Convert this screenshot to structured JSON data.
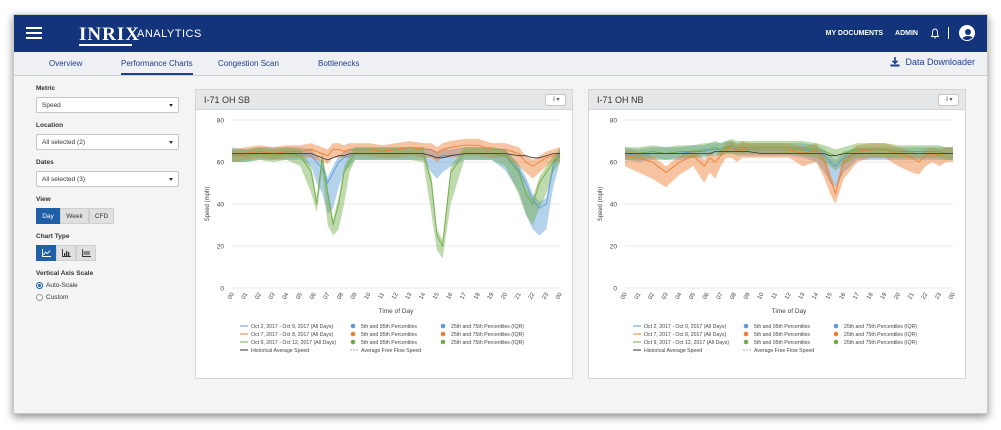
{
  "header": {
    "logo": "INRIX",
    "app_name": "ANALYTICS",
    "links": [
      "MY DOCUMENTS",
      "ADMIN"
    ],
    "icons": [
      "menu-icon",
      "bell-icon",
      "avatar-icon"
    ]
  },
  "tabs": [
    {
      "label": "Overview",
      "active": false
    },
    {
      "label": "Performance Charts",
      "active": true
    },
    {
      "label": "Congestion Scan",
      "active": false
    },
    {
      "label": "Bottlenecks",
      "active": false
    }
  ],
  "downloader_label": "Data Downloader",
  "sidebar": {
    "metric_label": "Metric",
    "metric_value": "Speed",
    "location_label": "Location",
    "location_value": "All selected (2)",
    "dates_label": "Dates",
    "dates_value": "All selected (3)",
    "view_label": "View",
    "view_options": [
      {
        "label": "Day",
        "active": true
      },
      {
        "label": "Week",
        "active": false
      },
      {
        "label": "CFD",
        "active": false
      }
    ],
    "chart_type_label": "Chart Type",
    "chart_type_icons": [
      "line-chart-icon",
      "bar-chart-icon",
      "area-chart-icon"
    ],
    "vertical_axis_label": "Vertical Axis Scale",
    "axis_options": [
      {
        "label": "Auto-Scale",
        "selected": true
      },
      {
        "label": "Custom",
        "selected": false
      }
    ]
  },
  "colors": {
    "brand": "#13347a",
    "accent": "#1f5fa8",
    "series_blue": "#5b9bd5",
    "series_orange": "#ed7d31",
    "series_green": "#70ad47",
    "historical": "#333333"
  },
  "chart_data": [
    {
      "type": "area",
      "title": "I-71 OH SB",
      "xlabel": "Time of Day",
      "ylabel": "Speed (mph)",
      "ylim": [
        0,
        80
      ],
      "yticks": [
        0,
        20,
        40,
        60,
        80
      ],
      "x_ticks": [
        "00",
        "01",
        "02",
        "03",
        "04",
        "05",
        "06",
        "07",
        "08",
        "09",
        "10",
        "11",
        "12",
        "13",
        "14",
        "15",
        "16",
        "17",
        "18",
        "19",
        "20",
        "21",
        "22",
        "23",
        "00"
      ],
      "grid": true,
      "legend": [
        {
          "name": "Oct 2, 2017 - Oct 9, 2017 (All Days)",
          "color": "#5b9bd5",
          "kind": "line"
        },
        {
          "name": "5th and 95th Percentiles",
          "color": "#5b9bd5",
          "kind": "dot"
        },
        {
          "name": "25th and 75th Percentiles (IQR)",
          "color": "#5b9bd5",
          "kind": "dot"
        },
        {
          "name": "Oct 7, 2017 - Oct 8, 2017 (All Days)",
          "color": "#ed7d31",
          "kind": "line"
        },
        {
          "name": "5th and 95th Percentiles",
          "color": "#ed7d31",
          "kind": "dot"
        },
        {
          "name": "25th and 75th Percentiles (IQR)",
          "color": "#ed7d31",
          "kind": "dot"
        },
        {
          "name": "Oct 9, 2017 - Oct 12, 2017 (All Days)",
          "color": "#70ad47",
          "kind": "line"
        },
        {
          "name": "5th and 95th Percentiles",
          "color": "#70ad47",
          "kind": "dot"
        },
        {
          "name": "25th and 75th Percentiles (IQR)",
          "color": "#70ad47",
          "kind": "dot"
        },
        {
          "name": "Historical Average Speed",
          "color": "#333333",
          "kind": "line"
        },
        {
          "name": "Average Free Flow Speed",
          "color": "#aaaaaa",
          "kind": "dash"
        }
      ],
      "x_hours": [
        0,
        1,
        2,
        3,
        4,
        5,
        5.8,
        6.2,
        6.6,
        7,
        7.4,
        7.8,
        8.2,
        8.6,
        9,
        10,
        11,
        12,
        13,
        14,
        14.6,
        15,
        15.4,
        16,
        17,
        18,
        19,
        20,
        21,
        21.5,
        22,
        22.5,
        23,
        23.5,
        24
      ],
      "series": [
        {
          "name": "Oct 2, 2017 - Oct 9, 2017 (All Days)",
          "color": "#5b9bd5",
          "values": [
            64,
            63,
            64,
            64,
            64,
            64,
            63,
            60,
            57,
            50,
            55,
            60,
            62,
            63,
            64,
            64,
            64,
            64,
            64,
            64,
            63,
            62,
            63,
            63,
            64,
            64,
            64,
            63,
            56,
            50,
            42,
            38,
            40,
            58,
            64
          ],
          "low": [
            60,
            60,
            61,
            61,
            61,
            61,
            58,
            50,
            45,
            35,
            38,
            48,
            55,
            58,
            61,
            61,
            61,
            61,
            61,
            61,
            55,
            52,
            55,
            58,
            61,
            61,
            61,
            56,
            46,
            35,
            28,
            25,
            28,
            48,
            60
          ]
        },
        {
          "name": "Oct 7, 2017 - Oct 8, 2017 (All Days)",
          "color": "#ed7d31",
          "values": [
            63,
            64,
            65,
            64,
            65,
            65,
            66,
            65,
            64,
            63,
            66,
            66,
            65,
            66,
            66,
            66,
            65,
            66,
            67,
            66,
            66,
            64,
            66,
            67,
            68,
            68,
            66,
            66,
            64,
            60,
            58,
            60,
            62,
            63,
            64
          ],
          "low": [
            60,
            61,
            62,
            61,
            62,
            62,
            62,
            61,
            60,
            59,
            62,
            62,
            62,
            62,
            63,
            63,
            62,
            62,
            63,
            62,
            62,
            60,
            62,
            62,
            63,
            63,
            62,
            62,
            58,
            55,
            52,
            55,
            58,
            60,
            60
          ]
        },
        {
          "name": "Oct 9, 2017 - Oct 12, 2017 (All Days)",
          "color": "#70ad47",
          "values": [
            63,
            63,
            64,
            63,
            64,
            63,
            55,
            40,
            62,
            45,
            30,
            40,
            55,
            60,
            64,
            64,
            64,
            64,
            64,
            64,
            50,
            25,
            20,
            55,
            64,
            64,
            64,
            63,
            55,
            45,
            40,
            50,
            55,
            60,
            63
          ],
          "low": [
            60,
            60,
            61,
            60,
            61,
            58,
            45,
            36,
            55,
            30,
            25,
            28,
            40,
            55,
            61,
            61,
            61,
            61,
            61,
            60,
            35,
            18,
            14,
            40,
            61,
            61,
            61,
            58,
            44,
            35,
            30,
            38,
            45,
            55,
            60
          ]
        },
        {
          "name": "Historical Average Speed",
          "color": "#333333",
          "values": [
            64,
            64,
            64,
            64,
            64,
            64,
            64,
            63,
            62,
            61,
            62,
            63,
            63,
            64,
            64,
            64,
            64,
            64,
            64,
            64,
            63,
            62,
            62,
            63,
            64,
            64,
            64,
            64,
            63,
            63,
            62,
            62,
            63,
            64,
            64
          ],
          "low": null
        }
      ]
    },
    {
      "type": "area",
      "title": "I-71 OH NB",
      "xlabel": "Time of Day",
      "ylabel": "Speed (mph)",
      "ylim": [
        0,
        80
      ],
      "yticks": [
        0,
        20,
        40,
        60,
        80
      ],
      "x_ticks": [
        "00",
        "01",
        "02",
        "03",
        "04",
        "05",
        "06",
        "07",
        "08",
        "09",
        "10",
        "11",
        "12",
        "13",
        "14",
        "15",
        "16",
        "17",
        "18",
        "19",
        "20",
        "21",
        "22",
        "23",
        "00"
      ],
      "grid": true,
      "legend": [
        {
          "name": "Oct 2, 2017 - Oct 9, 2017 (All Days)",
          "color": "#5b9bd5",
          "kind": "line"
        },
        {
          "name": "5th and 95th Percentiles",
          "color": "#5b9bd5",
          "kind": "dot"
        },
        {
          "name": "25th and 75th Percentiles (IQR)",
          "color": "#5b9bd5",
          "kind": "dot"
        },
        {
          "name": "Oct 7, 2017 - Oct 8, 2017 (All Days)",
          "color": "#ed7d31",
          "kind": "line"
        },
        {
          "name": "5th and 95th Percentiles",
          "color": "#ed7d31",
          "kind": "dot"
        },
        {
          "name": "25th and 75th Percentiles (IQR)",
          "color": "#ed7d31",
          "kind": "dot"
        },
        {
          "name": "Oct 9, 2017 - Oct 12, 2017 (All Days)",
          "color": "#70ad47",
          "kind": "line"
        },
        {
          "name": "5th and 95th Percentiles",
          "color": "#70ad47",
          "kind": "dot"
        },
        {
          "name": "25th and 75th Percentiles (IQR)",
          "color": "#70ad47",
          "kind": "dot"
        },
        {
          "name": "Historical Average Speed",
          "color": "#333333",
          "kind": "line"
        },
        {
          "name": "Average Free Flow Speed",
          "color": "#aaaaaa",
          "kind": "dash"
        }
      ],
      "x_hours": [
        0,
        1,
        2,
        3,
        4,
        5,
        5.8,
        6.2,
        6.6,
        7,
        7.4,
        7.8,
        8.2,
        8.6,
        9,
        10,
        11,
        12,
        13,
        14,
        14.6,
        15,
        15.4,
        16,
        17,
        18,
        19,
        20,
        21,
        21.5,
        22,
        22.5,
        23,
        23.5,
        24
      ],
      "series": [
        {
          "name": "Oct 2, 2017 - Oct 9, 2017 (All Days)",
          "color": "#5b9bd5",
          "values": [
            64,
            63,
            64,
            64,
            64,
            65,
            65,
            66,
            66,
            66,
            67,
            67,
            66,
            66,
            66,
            66,
            66,
            66,
            66,
            65,
            63,
            60,
            58,
            62,
            64,
            64,
            64,
            64,
            64,
            64,
            64,
            64,
            64,
            64,
            64
          ],
          "low": [
            61,
            60,
            61,
            61,
            61,
            62,
            62,
            63,
            63,
            63,
            64,
            64,
            63,
            63,
            63,
            63,
            63,
            63,
            62,
            60,
            55,
            50,
            48,
            55,
            61,
            61,
            61,
            61,
            61,
            61,
            61,
            61,
            61,
            61,
            61
          ]
        },
        {
          "name": "Oct 7, 2017 - Oct 8, 2017 (All Days)",
          "color": "#ed7d31",
          "values": [
            63,
            62,
            60,
            55,
            60,
            63,
            58,
            62,
            60,
            63,
            66,
            67,
            65,
            67,
            66,
            66,
            66,
            66,
            64,
            66,
            60,
            52,
            45,
            60,
            65,
            66,
            66,
            64,
            62,
            60,
            63,
            64,
            63,
            64,
            64
          ],
          "low": [
            58,
            55,
            52,
            48,
            54,
            58,
            50,
            55,
            52,
            58,
            62,
            62,
            60,
            62,
            62,
            62,
            62,
            62,
            58,
            60,
            52,
            45,
            40,
            52,
            60,
            62,
            62,
            58,
            55,
            54,
            58,
            60,
            58,
            60,
            60
          ]
        },
        {
          "name": "Oct 9, 2017 - Oct 12, 2017 (All Days)",
          "color": "#70ad47",
          "values": [
            64,
            64,
            65,
            64,
            65,
            65,
            66,
            66,
            67,
            66,
            67,
            68,
            67,
            67,
            67,
            67,
            67,
            67,
            67,
            66,
            65,
            64,
            63,
            64,
            66,
            66,
            66,
            65,
            65,
            65,
            65,
            65,
            65,
            64,
            64
          ],
          "low": [
            61,
            61,
            62,
            61,
            62,
            62,
            63,
            63,
            64,
            63,
            64,
            64,
            64,
            64,
            64,
            64,
            64,
            64,
            63,
            62,
            60,
            58,
            56,
            59,
            62,
            62,
            62,
            62,
            62,
            62,
            62,
            62,
            62,
            61,
            61
          ]
        },
        {
          "name": "Historical Average Speed",
          "color": "#333333",
          "values": [
            64,
            64,
            64,
            64,
            64,
            64,
            64,
            64,
            65,
            65,
            65,
            65,
            65,
            65,
            65,
            64,
            64,
            64,
            64,
            64,
            64,
            63,
            63,
            64,
            64,
            64,
            64,
            64,
            64,
            64,
            64,
            64,
            64,
            64,
            64
          ],
          "low": null
        }
      ]
    }
  ]
}
